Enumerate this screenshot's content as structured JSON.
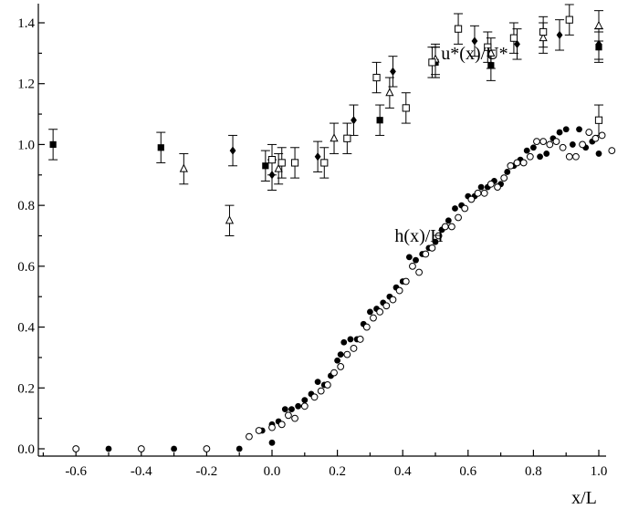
{
  "chart_data": {
    "type": "scatter",
    "title": "",
    "xlabel": "x/L",
    "ylabel": "",
    "xlim": [
      -0.7,
      1.05
    ],
    "ylim": [
      -0.02,
      1.45
    ],
    "grid": false,
    "legend": "none",
    "x_ticks": [
      -0.6,
      -0.4,
      -0.2,
      0.0,
      0.2,
      0.4,
      0.6,
      0.8,
      1.0
    ],
    "x_tick_labels": [
      "-0.6",
      "-0.4",
      "-0.2",
      "0.0",
      "0.2",
      "0.4",
      "0.6",
      "0.8",
      "1.0"
    ],
    "y_ticks": [
      0.0,
      0.2,
      0.4,
      0.6,
      0.8,
      1.0,
      1.2,
      1.4
    ],
    "y_tick_labels": [
      "0.0",
      "0.2",
      "0.4",
      "0.6",
      "0.8",
      "1.0",
      "1.2",
      "1.4"
    ],
    "annotations": [
      {
        "text": "u*(x)/U*",
        "x": 0.62,
        "y": 1.28
      },
      {
        "text": "h(x)/H",
        "x": 0.45,
        "y": 0.68
      }
    ],
    "series": [
      {
        "marker": "square-filled",
        "error_bar": 0.05,
        "points": [
          [
            -0.67,
            1.0
          ],
          [
            -0.34,
            0.99
          ],
          [
            -0.02,
            0.93
          ],
          [
            0.33,
            1.08
          ],
          [
            0.5,
            1.27
          ],
          [
            0.67,
            1.26
          ],
          [
            1.0,
            1.32
          ]
        ]
      },
      {
        "marker": "diamond-filled",
        "error_bar": 0.05,
        "points": [
          [
            -0.12,
            0.98
          ],
          [
            0.0,
            0.9
          ],
          [
            0.14,
            0.96
          ],
          [
            0.25,
            1.08
          ],
          [
            0.37,
            1.24
          ],
          [
            0.5,
            1.27
          ],
          [
            0.62,
            1.34
          ],
          [
            0.75,
            1.33
          ],
          [
            0.88,
            1.36
          ],
          [
            1.0,
            1.33
          ]
        ]
      },
      {
        "marker": "triangle-open",
        "error_bar": 0.05,
        "points": [
          [
            -0.27,
            0.92
          ],
          [
            -0.13,
            0.75
          ],
          [
            0.02,
            0.92
          ],
          [
            0.19,
            1.02
          ],
          [
            0.36,
            1.17
          ],
          [
            0.5,
            1.28
          ],
          [
            0.67,
            1.3
          ],
          [
            0.83,
            1.35
          ],
          [
            1.0,
            1.39
          ]
        ]
      },
      {
        "marker": "square-open",
        "error_bar": 0.05,
        "points": [
          [
            0.0,
            0.95
          ],
          [
            0.03,
            0.94
          ],
          [
            0.07,
            0.94
          ],
          [
            0.16,
            0.94
          ],
          [
            0.23,
            1.02
          ],
          [
            0.32,
            1.22
          ],
          [
            0.41,
            1.12
          ],
          [
            0.49,
            1.27
          ],
          [
            0.57,
            1.38
          ],
          [
            0.66,
            1.32
          ],
          [
            0.74,
            1.35
          ],
          [
            0.83,
            1.37
          ],
          [
            0.91,
            1.41
          ],
          [
            1.0,
            1.08
          ]
        ]
      },
      {
        "marker": "circle-filled",
        "points": [
          [
            -0.5,
            0.0
          ],
          [
            -0.3,
            0.0
          ],
          [
            -0.1,
            0.0
          ],
          [
            0.0,
            0.02
          ],
          [
            -0.03,
            0.06
          ],
          [
            0.0,
            0.08
          ],
          [
            0.02,
            0.09
          ],
          [
            0.04,
            0.13
          ],
          [
            0.06,
            0.13
          ],
          [
            0.08,
            0.14
          ],
          [
            0.1,
            0.16
          ],
          [
            0.12,
            0.18
          ],
          [
            0.14,
            0.22
          ],
          [
            0.16,
            0.21
          ],
          [
            0.18,
            0.24
          ],
          [
            0.2,
            0.29
          ],
          [
            0.21,
            0.31
          ],
          [
            0.22,
            0.35
          ],
          [
            0.24,
            0.36
          ],
          [
            0.26,
            0.36
          ],
          [
            0.28,
            0.41
          ],
          [
            0.3,
            0.45
          ],
          [
            0.32,
            0.46
          ],
          [
            0.34,
            0.48
          ],
          [
            0.36,
            0.5
          ],
          [
            0.38,
            0.53
          ],
          [
            0.4,
            0.55
          ],
          [
            0.42,
            0.63
          ],
          [
            0.44,
            0.62
          ],
          [
            0.46,
            0.64
          ],
          [
            0.48,
            0.66
          ],
          [
            0.5,
            0.68
          ],
          [
            0.52,
            0.72
          ],
          [
            0.54,
            0.75
          ],
          [
            0.56,
            0.79
          ],
          [
            0.58,
            0.8
          ],
          [
            0.6,
            0.83
          ],
          [
            0.62,
            0.83
          ],
          [
            0.64,
            0.86
          ],
          [
            0.66,
            0.86
          ],
          [
            0.68,
            0.88
          ],
          [
            0.7,
            0.87
          ],
          [
            0.72,
            0.91
          ],
          [
            0.74,
            0.93
          ],
          [
            0.76,
            0.95
          ],
          [
            0.78,
            0.98
          ],
          [
            0.8,
            0.99
          ],
          [
            0.82,
            0.96
          ],
          [
            0.84,
            0.97
          ],
          [
            0.86,
            1.02
          ],
          [
            0.88,
            1.04
          ],
          [
            0.9,
            1.05
          ],
          [
            0.92,
            1.0
          ],
          [
            0.94,
            1.05
          ],
          [
            0.96,
            0.99
          ],
          [
            0.98,
            1.01
          ],
          [
            1.0,
            0.97
          ],
          [
            1.01,
            1.03
          ]
        ]
      },
      {
        "marker": "circle-open",
        "points": [
          [
            -0.6,
            0.0
          ],
          [
            -0.4,
            0.0
          ],
          [
            -0.2,
            0.0
          ],
          [
            -0.07,
            0.04
          ],
          [
            -0.04,
            0.06
          ],
          [
            0.0,
            0.07
          ],
          [
            0.03,
            0.08
          ],
          [
            0.05,
            0.11
          ],
          [
            0.07,
            0.1
          ],
          [
            0.1,
            0.14
          ],
          [
            0.13,
            0.17
          ],
          [
            0.15,
            0.19
          ],
          [
            0.17,
            0.21
          ],
          [
            0.19,
            0.25
          ],
          [
            0.21,
            0.27
          ],
          [
            0.23,
            0.31
          ],
          [
            0.25,
            0.33
          ],
          [
            0.27,
            0.36
          ],
          [
            0.29,
            0.4
          ],
          [
            0.31,
            0.43
          ],
          [
            0.33,
            0.45
          ],
          [
            0.35,
            0.47
          ],
          [
            0.37,
            0.49
          ],
          [
            0.39,
            0.52
          ],
          [
            0.41,
            0.55
          ],
          [
            0.43,
            0.6
          ],
          [
            0.45,
            0.58
          ],
          [
            0.47,
            0.64
          ],
          [
            0.49,
            0.66
          ],
          [
            0.51,
            0.7
          ],
          [
            0.53,
            0.73
          ],
          [
            0.55,
            0.73
          ],
          [
            0.57,
            0.76
          ],
          [
            0.59,
            0.79
          ],
          [
            0.61,
            0.82
          ],
          [
            0.63,
            0.84
          ],
          [
            0.65,
            0.84
          ],
          [
            0.67,
            0.87
          ],
          [
            0.69,
            0.86
          ],
          [
            0.71,
            0.89
          ],
          [
            0.73,
            0.93
          ],
          [
            0.75,
            0.94
          ],
          [
            0.77,
            0.94
          ],
          [
            0.79,
            0.96
          ],
          [
            0.81,
            1.01
          ],
          [
            0.83,
            1.01
          ],
          [
            0.85,
            1.0
          ],
          [
            0.87,
            1.01
          ],
          [
            0.89,
            0.99
          ],
          [
            0.91,
            0.96
          ],
          [
            0.93,
            0.96
          ],
          [
            0.95,
            1.0
          ],
          [
            0.97,
            1.04
          ],
          [
            0.99,
            1.02
          ],
          [
            1.01,
            1.03
          ],
          [
            1.04,
            0.98
          ]
        ]
      }
    ]
  }
}
